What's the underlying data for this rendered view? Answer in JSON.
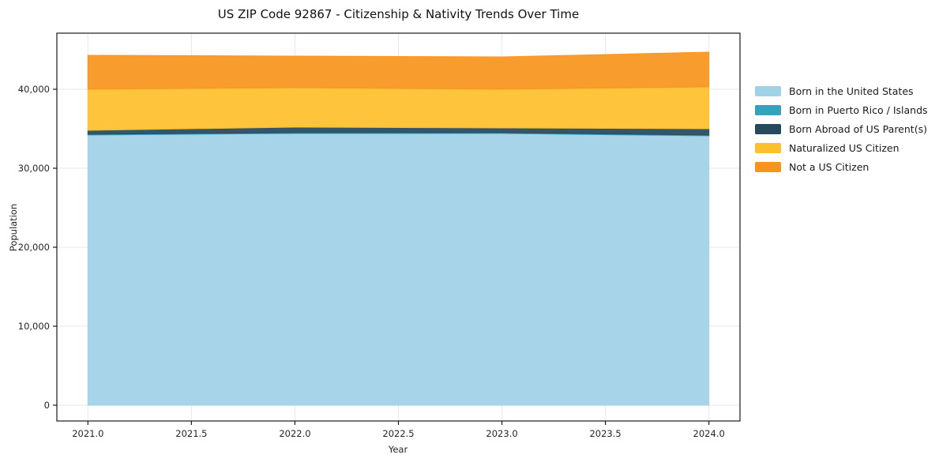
{
  "chart_data": {
    "type": "area",
    "stacked": true,
    "title": "US ZIP Code 92867 - Citizenship & Nativity Trends Over Time",
    "xlabel": "Year",
    "ylabel": "Population",
    "x": [
      2021,
      2022,
      2023,
      2024
    ],
    "series": [
      {
        "name": "Born in the United States",
        "color": "#a0d1e6",
        "values": [
          34200,
          34400,
          34400,
          34100
        ]
      },
      {
        "name": "Born in Puerto Rico / Islands",
        "color": "#35a1bd",
        "values": [
          100,
          100,
          100,
          100
        ]
      },
      {
        "name": "Born Abroad of US Parent(s)",
        "color": "#26495d",
        "values": [
          500,
          700,
          600,
          800
        ]
      },
      {
        "name": "Naturalized US Citizen",
        "color": "#fdc02d",
        "values": [
          5200,
          5000,
          4900,
          5300
        ]
      },
      {
        "name": "Not a US Citizen",
        "color": "#f7941e",
        "values": [
          4300,
          4000,
          4100,
          4400
        ]
      }
    ],
    "xlim": [
      2020.85,
      2024.15
    ],
    "ylim": [
      -2000,
      47100
    ],
    "x_ticks": {
      "values": [
        2021.0,
        2021.5,
        2022.0,
        2022.5,
        2023.0,
        2023.5,
        2024.0
      ],
      "labels": [
        "2021.0",
        "2021.5",
        "2022.0",
        "2022.5",
        "2023.0",
        "2023.5",
        "2024.0"
      ]
    },
    "y_ticks": {
      "values": [
        0,
        10000,
        20000,
        30000,
        40000
      ],
      "labels": [
        "0",
        "10,000",
        "20,000",
        "30,000",
        "40,000"
      ]
    },
    "grid": true,
    "legend_position": "outside-right"
  },
  "colors": {
    "background": "#ffffff",
    "grid": "#e7e7e7",
    "spine": "#1a1a1a",
    "text": "#262626"
  }
}
